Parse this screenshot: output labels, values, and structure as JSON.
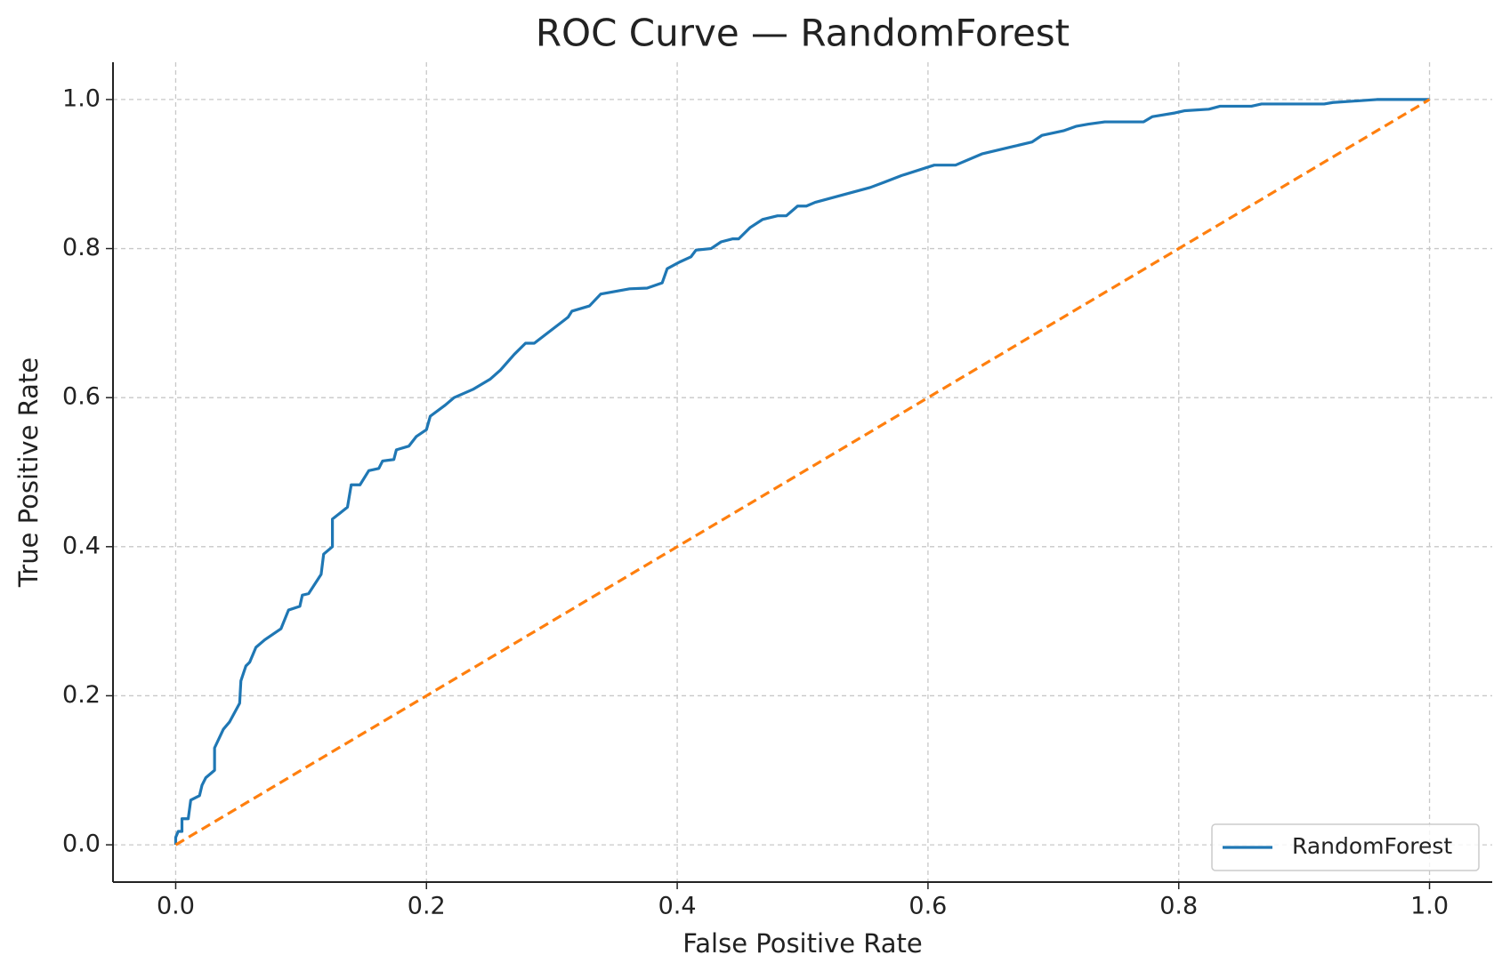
{
  "chart_data": {
    "type": "line",
    "title": "ROC Curve — RandomForest",
    "xlabel": "False Positive Rate",
    "ylabel": "True Positive Rate",
    "xlim": [
      -0.05,
      1.05
    ],
    "ylim": [
      -0.05,
      1.05
    ],
    "xticks": [
      {
        "value": 0,
        "label": "0.0"
      },
      0.2,
      0.4,
      0.6,
      0.8,
      {
        "value": 1,
        "label": "1.0"
      }
    ],
    "yticks": [
      {
        "value": 0,
        "label": "0.0"
      },
      0.2,
      0.4,
      0.6,
      0.8,
      {
        "value": 1,
        "label": "1.0"
      }
    ],
    "grid": true,
    "legend": "lower right",
    "series": [
      {
        "name": "RandomForest",
        "color": "#1f77b4",
        "x": [
          0,
          0,
          0.002,
          0.005,
          0.005,
          0.01,
          0.012,
          0.019,
          0.021,
          0.024,
          0.031,
          0.031,
          0.038,
          0.043,
          0.051,
          0.052,
          0.056,
          0.059,
          0.064,
          0.071,
          0.084,
          0.09,
          0.099,
          0.101,
          0.106,
          0.116,
          0.118,
          0.125,
          0.125,
          0.137,
          0.14,
          0.147,
          0.154,
          0.162,
          0.165,
          0.174,
          0.176,
          0.186,
          0.192,
          0.2,
          0.203,
          0.215,
          0.222,
          0.237,
          0.251,
          0.259,
          0.27,
          0.279,
          0.286,
          0.296,
          0.313,
          0.316,
          0.33,
          0.339,
          0.362,
          0.376,
          0.388,
          0.392,
          0.402,
          0.411,
          0.415,
          0.427,
          0.435,
          0.444,
          0.449,
          0.458,
          0.468,
          0.48,
          0.487,
          0.496,
          0.503,
          0.51,
          0.532,
          0.554,
          0.565,
          0.579,
          0.605,
          0.622,
          0.643,
          0.668,
          0.683,
          0.691,
          0.708,
          0.718,
          0.728,
          0.741,
          0.772,
          0.779,
          0.797,
          0.805,
          0.824,
          0.833,
          0.858,
          0.866,
          0.916,
          0.923,
          0.941,
          0.958,
          1.0
        ],
        "y": [
          0,
          0.01,
          0.018,
          0.018,
          0.035,
          0.035,
          0.06,
          0.066,
          0.08,
          0.09,
          0.1,
          0.13,
          0.155,
          0.165,
          0.19,
          0.22,
          0.24,
          0.245,
          0.265,
          0.275,
          0.29,
          0.315,
          0.32,
          0.335,
          0.337,
          0.363,
          0.39,
          0.4,
          0.437,
          0.453,
          0.483,
          0.483,
          0.502,
          0.505,
          0.515,
          0.517,
          0.53,
          0.535,
          0.548,
          0.557,
          0.575,
          0.59,
          0.6,
          0.611,
          0.625,
          0.637,
          0.658,
          0.673,
          0.673,
          0.686,
          0.708,
          0.716,
          0.723,
          0.739,
          0.746,
          0.747,
          0.754,
          0.773,
          0.782,
          0.789,
          0.798,
          0.8,
          0.809,
          0.813,
          0.813,
          0.828,
          0.839,
          0.844,
          0.844,
          0.857,
          0.857,
          0.862,
          0.872,
          0.882,
          0.889,
          0.898,
          0.912,
          0.912,
          0.927,
          0.937,
          0.943,
          0.952,
          0.958,
          0.964,
          0.967,
          0.97,
          0.97,
          0.977,
          0.982,
          0.985,
          0.987,
          0.991,
          0.991,
          0.994,
          0.994,
          0.996,
          0.998,
          1.0,
          1.0
        ]
      },
      {
        "color": "#ff7f0e",
        "dashed": true,
        "x": [
          0,
          1
        ],
        "y": [
          0,
          1
        ]
      }
    ]
  }
}
